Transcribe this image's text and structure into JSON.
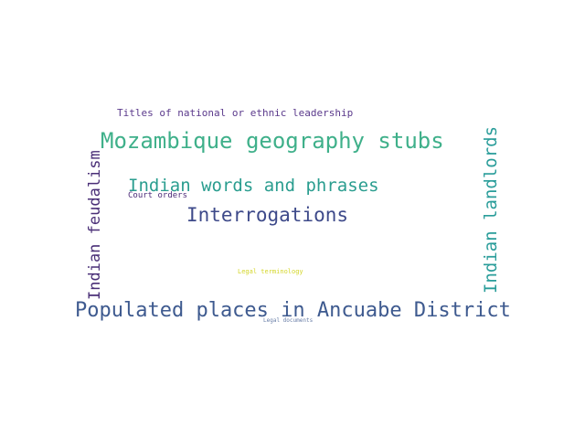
{
  "words": [
    {
      "text": "Titles of national or ethnic leadership",
      "color": "#5b3a8c"
    },
    {
      "text": "Mozambique geography stubs",
      "color": "#3fb08a"
    },
    {
      "text": "Indian words and phrases",
      "color": "#2a9d8f"
    },
    {
      "text": "Court orders",
      "color": "#4b2a78"
    },
    {
      "text": "Interrogations",
      "color": "#3e4a8a"
    },
    {
      "text": "Legal terminology",
      "color": "#d4d62a"
    },
    {
      "text": "Populated places in Ancuabe District",
      "color": "#3e5a8f"
    },
    {
      "text": "Legal documents",
      "color": "#6a7fa8"
    },
    {
      "text": "Indian feudalism",
      "color": "#4a2f77"
    },
    {
      "text": "Indian landlords",
      "color": "#2a9d9a"
    }
  ]
}
